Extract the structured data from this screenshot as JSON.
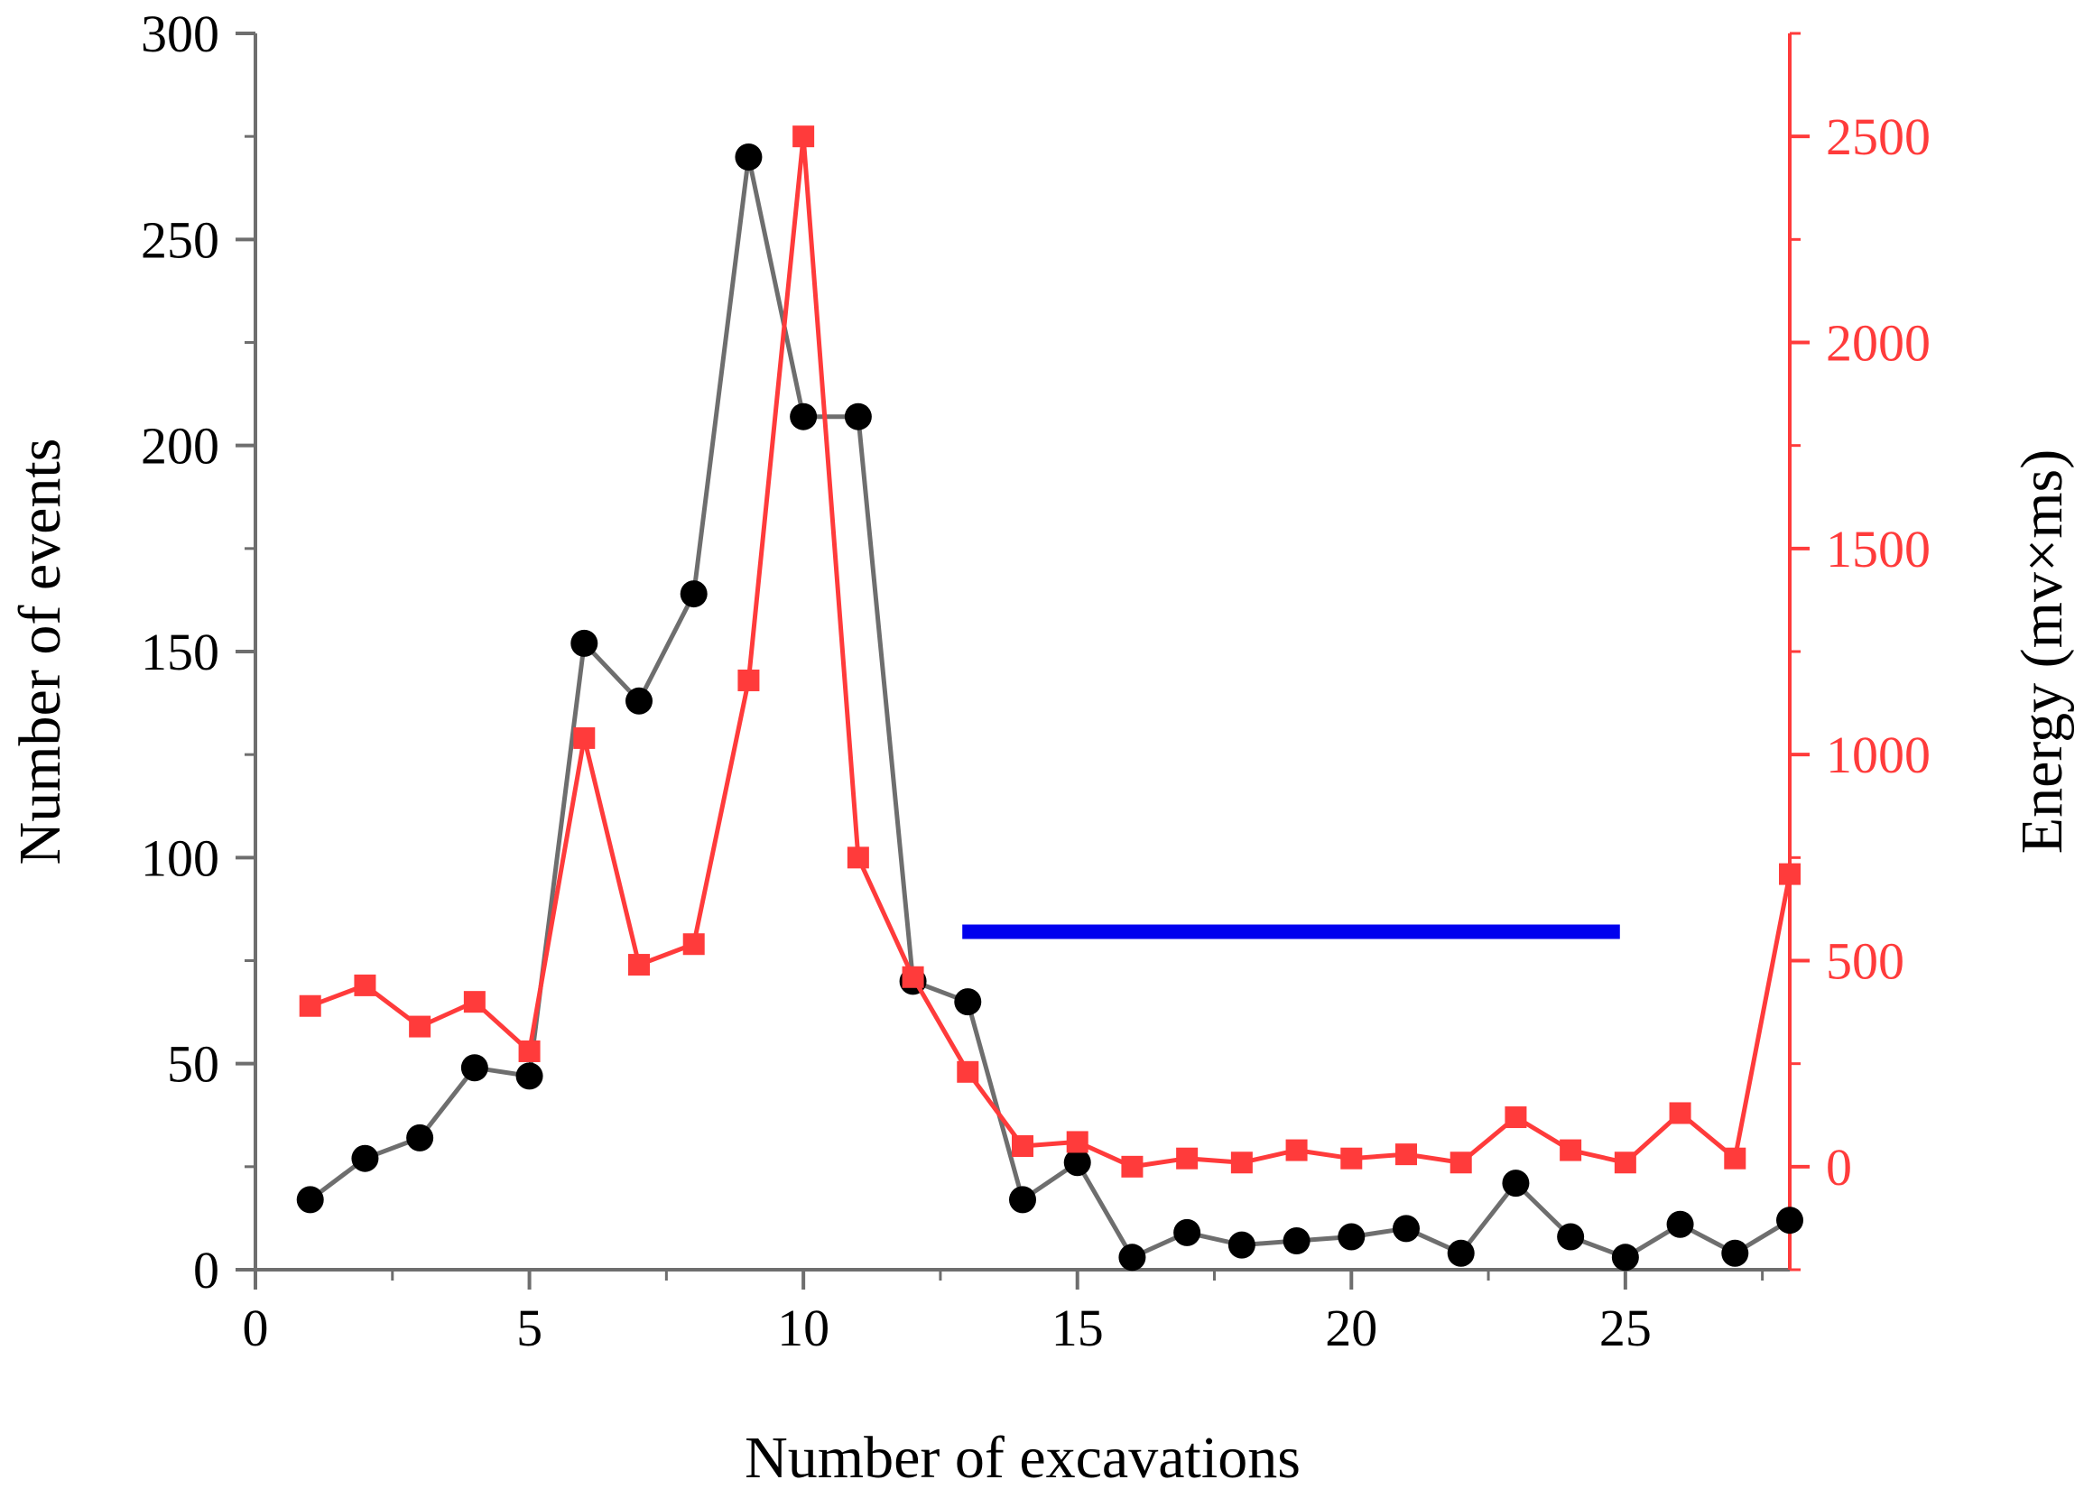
{
  "chart_data": {
    "type": "line",
    "title": "",
    "xlabel": "Number of excavations",
    "ylabel": "Number of events",
    "y2label": "Energy (mv×ms)",
    "xlim": [
      0,
      28
    ],
    "ylim": [
      0,
      300
    ],
    "y2lim": [
      -250,
      2750
    ],
    "x_ticks": [
      "0",
      "5",
      "10",
      "15",
      "20",
      "25"
    ],
    "y_ticks": [
      "0",
      "50",
      "100",
      "150",
      "200",
      "250",
      "300"
    ],
    "y2_ticks": [
      "0",
      "500",
      "1000",
      "1500",
      "2000",
      "2500"
    ],
    "legend": "none",
    "grid": false,
    "series": [
      {
        "name": "Number of events",
        "axis": "left",
        "marker": "circle",
        "color": "#000000",
        "line_color": "#6e6e6e",
        "x": [
          1,
          2,
          3,
          4,
          5,
          6,
          7,
          8,
          9,
          10,
          11,
          12,
          13,
          14,
          15,
          16,
          17,
          18,
          19,
          20,
          21,
          22,
          23,
          24,
          25,
          26,
          27,
          28
        ],
        "values": [
          17,
          27,
          32,
          49,
          47,
          152,
          138,
          164,
          270,
          207,
          207,
          70,
          65,
          17,
          26,
          3,
          9,
          6,
          7,
          8,
          10,
          4,
          21,
          8,
          3,
          11,
          4,
          12
        ]
      },
      {
        "name": "Energy",
        "axis": "right",
        "marker": "square",
        "color": "#ff3b3b",
        "line_color": "#ff3b3b",
        "x": [
          1,
          2,
          3,
          4,
          5,
          6,
          7,
          8,
          9,
          10,
          11,
          12,
          13,
          14,
          15,
          16,
          17,
          18,
          19,
          20,
          21,
          22,
          23,
          24,
          25,
          26,
          27,
          28
        ],
        "values": [
          390,
          440,
          340,
          400,
          280,
          1040,
          490,
          540,
          1180,
          2500,
          750,
          460,
          230,
          50,
          60,
          0,
          20,
          10,
          40,
          20,
          30,
          10,
          120,
          40,
          10,
          130,
          20,
          710
        ]
      }
    ],
    "annotation_line": {
      "color": "#0000ee",
      "x_start": 12.9,
      "x_end": 24.9,
      "y_value": 82,
      "axis": "left"
    }
  }
}
